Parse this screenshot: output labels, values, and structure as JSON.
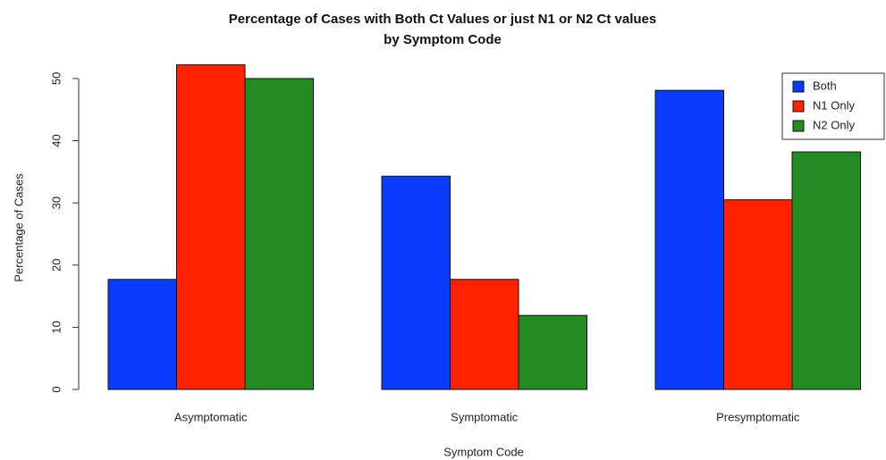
{
  "chart_data": {
    "type": "bar",
    "title": [
      "Percentage of Cases with Both Ct Values or just N1 or N2 Ct values",
      "by Symptom Code"
    ],
    "x_label": "Symptom Code",
    "y_label": "Percentage of Cases",
    "categories": [
      "Asymptomatic",
      "Symptomatic",
      "Presymptomatic"
    ],
    "series": [
      {
        "name": "Both",
        "color": "#0a3cff",
        "values": [
          17.7,
          34.3,
          48.1
        ]
      },
      {
        "name": "N1 Only",
        "color": "#ff2200",
        "values": [
          52.2,
          17.7,
          30.5
        ]
      },
      {
        "name": "N2 Only",
        "color": "#228b22",
        "values": [
          50,
          11.9,
          38.2
        ]
      }
    ],
    "ylim": [
      0,
      52
    ],
    "yticks": [
      0,
      10,
      20,
      30,
      40,
      50
    ],
    "legend": "top-right"
  }
}
